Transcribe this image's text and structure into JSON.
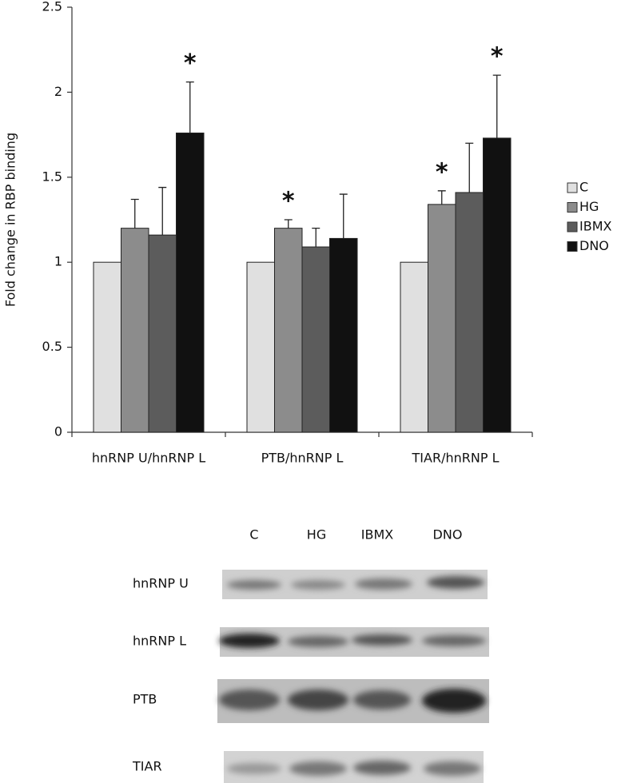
{
  "chart_data": {
    "type": "bar",
    "ylabel": "Fold change in RBP binding",
    "categories": [
      "hnRNP U/hnRNP L",
      "PTB/hnRNP L",
      "TIAR/hnRNP L"
    ],
    "series": [
      {
        "name": "C",
        "color": "#e0e0e0",
        "values": [
          1,
          1,
          1
        ],
        "errors": [
          null,
          null,
          null
        ],
        "annotations": [
          null,
          null,
          null
        ]
      },
      {
        "name": "HG",
        "color": "#8c8c8c",
        "values": [
          1.2,
          1.2,
          1.34
        ],
        "errors": [
          0.17,
          0.05,
          0.08
        ],
        "annotations": [
          null,
          "*",
          "*"
        ]
      },
      {
        "name": "IBMX",
        "color": "#5c5c5c",
        "values": [
          1.16,
          1.09,
          1.41
        ],
        "errors": [
          0.28,
          0.11,
          0.29
        ],
        "annotations": [
          null,
          null,
          null
        ]
      },
      {
        "name": "DNO",
        "color": "#111111",
        "values": [
          1.76,
          1.14,
          1.73
        ],
        "errors": [
          0.3,
          0.26,
          0.37
        ],
        "annotations": [
          "*",
          null,
          "*"
        ]
      }
    ],
    "ylim": [
      0,
      2.5
    ],
    "yticks": [
      0,
      0.5,
      1,
      1.5,
      2,
      2.5
    ],
    "grid": false,
    "legend": "right"
  },
  "blot": {
    "lanes": [
      "C",
      "HG",
      "IBMX",
      "DNO"
    ],
    "rows": [
      "hnRNP U",
      "hnRNP L",
      "PTB",
      "TIAR"
    ]
  }
}
